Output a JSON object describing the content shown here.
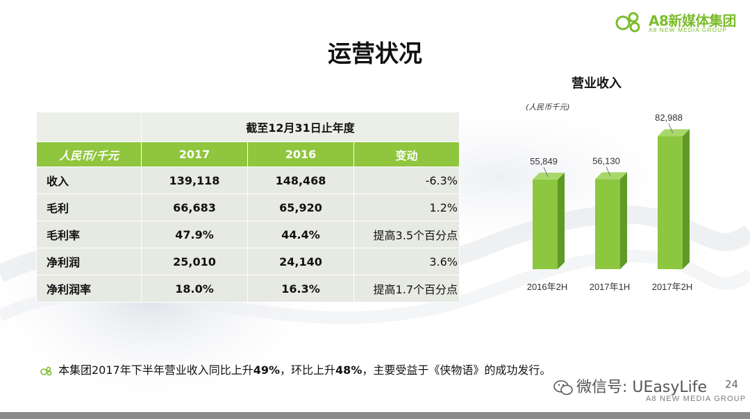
{
  "header": {
    "logo_cn": "A8新媒体集团",
    "logo_en": "A8 NEW MEDIA GROUP",
    "title": "运营状况"
  },
  "table": {
    "period_label": "截至12月31日止年度",
    "headers": [
      "人民币/千元",
      "2017",
      "2016",
      "变动"
    ],
    "rows": [
      {
        "label": "收入",
        "y2017": "139,118",
        "y2016": "148,468",
        "change": "-6.3%"
      },
      {
        "label": "毛利",
        "y2017": "66,683",
        "y2016": "65,920",
        "change": "1.2%"
      },
      {
        "label": "毛利率",
        "y2017": "47.9%",
        "y2016": "44.4%",
        "change": "提高3.5个百分点"
      },
      {
        "label": "净利润",
        "y2017": "25,010",
        "y2016": "24,140",
        "change": "3.6%"
      },
      {
        "label": "净利润率",
        "y2017": "18.0%",
        "y2016": "16.3%",
        "change": "提高1.7个百分点"
      }
    ]
  },
  "chart_data": {
    "type": "bar",
    "title": "营业收入",
    "unit_label": "(人民币千元)",
    "categories": [
      "2016年2H",
      "2017年1H",
      "2017年2H"
    ],
    "values": [
      55849,
      56130,
      82988
    ],
    "value_labels": [
      "55,849",
      "56,130",
      "82,988"
    ],
    "bar_color": "#8dc63f",
    "ylim": [
      0,
      90000
    ],
    "grid": false,
    "legend": "none"
  },
  "footnote": {
    "part1": "本集团2017年下半年营业收入同比上升",
    "pct1": "49%",
    "part2": "，环比上升",
    "pct2": "48%",
    "part3": "，主要受益于《侠物语》的成功发行。"
  },
  "watermark": {
    "text": "微信号: UEasyLife",
    "page_number": "24",
    "group_en": "A8 NEW MEDIA GROUP"
  },
  "colors": {
    "accent_green": "#8fc63d",
    "table_row_bg": "#e7e9e3"
  }
}
